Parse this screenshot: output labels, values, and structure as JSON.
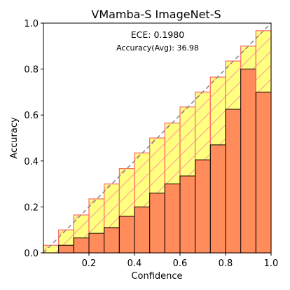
{
  "chart_data": {
    "type": "bar",
    "title": "VMamba-S  ImageNet-S",
    "xlabel": "Confidence",
    "ylabel": "Accuracy",
    "xlim": [
      0.0,
      1.0
    ],
    "ylim": [
      0.0,
      1.0
    ],
    "x_ticks": [
      "0.2",
      "0.4",
      "0.6",
      "0.8",
      "1.0"
    ],
    "y_ticks": [
      "0.0",
      "0.2",
      "0.4",
      "0.6",
      "0.8",
      "1.0"
    ],
    "annotations": {
      "ece": "ECE: 0.1980",
      "accuracy": "Accuracy(Avg): 36.98"
    },
    "bin_edges": [
      0.0,
      0.0667,
      0.1333,
      0.2,
      0.2667,
      0.3333,
      0.4,
      0.4667,
      0.5333,
      0.6,
      0.6667,
      0.7333,
      0.8,
      0.8667,
      0.9333,
      1.0
    ],
    "series": [
      {
        "values": [
          0.0,
          0.033,
          0.065,
          0.085,
          0.11,
          0.16,
          0.2,
          0.26,
          0.3,
          0.335,
          0.405,
          0.47,
          0.625,
          0.8,
          0.7
        ]
      },
      {
        "values": [
          0.033,
          0.1,
          0.165,
          0.235,
          0.3,
          0.367,
          0.435,
          0.5,
          0.565,
          0.635,
          0.7,
          0.765,
          0.835,
          0.9,
          0.967
        ]
      }
    ],
    "colors": {
      "accuracy_fill": "#FF8C5A",
      "gap_fill": "#FFFF80",
      "bar_edge": "#000000",
      "gap_edge": "#FF6666",
      "hatch": "#FF9999",
      "diagonal": "#808080"
    },
    "grid": false,
    "legend": "none"
  }
}
